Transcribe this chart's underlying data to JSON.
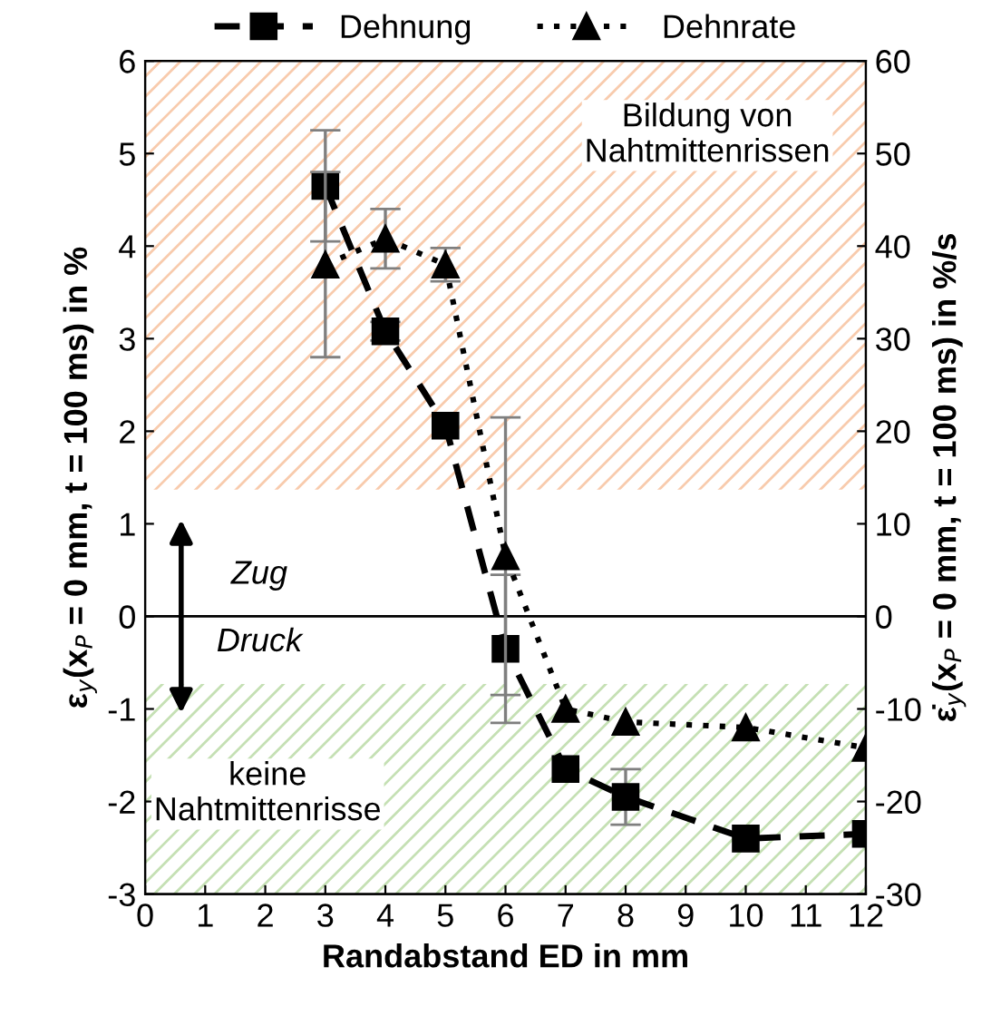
{
  "chart_data": {
    "type": "line",
    "xlabel": "Randabstand ED in mm",
    "ylabel": "ε$_{y}$(x$_{P}$ = 0 mm, t = 100 ms) in %",
    "y2label": "ε̇$_{y}$(x$_{P}$ = 0 mm, t = 100 ms) in %/s",
    "x": [
      3,
      4,
      5,
      6,
      7,
      8,
      10,
      12
    ],
    "series": [
      {
        "name": "Dehnung",
        "color": "#000000",
        "marker": "square",
        "line_style": "dashed",
        "values": [
          4.65,
          3.08,
          2.06,
          -0.35,
          -1.65,
          -1.95,
          -2.4,
          -2.35
        ],
        "errors": [
          0.6,
          0.1,
          null,
          0.8,
          null,
          0.3,
          null,
          null
        ]
      },
      {
        "name": "Dehnrate",
        "color": "#000000",
        "marker": "triangle",
        "line_style": "dotted",
        "axis": "y2",
        "values": [
          38,
          40.8,
          38,
          6.5,
          -10,
          -11.4,
          -12,
          -14.2
        ],
        "errors": [
          10,
          3.2,
          1.8,
          15,
          null,
          null,
          null,
          null
        ]
      }
    ],
    "xlim": [
      0,
      12
    ],
    "xticks": [
      0,
      1,
      2,
      3,
      4,
      5,
      6,
      7,
      8,
      9,
      10,
      11,
      12
    ],
    "ylim": [
      -3,
      6
    ],
    "yticks": [
      -3,
      -2,
      -1,
      0,
      1,
      2,
      3,
      4,
      5,
      6
    ],
    "y2lim": [
      -30,
      60
    ],
    "y2ticks": [
      -30,
      -20,
      -10,
      0,
      10,
      20,
      30,
      40,
      50,
      60
    ],
    "ref_lines": [
      {
        "axis": "y",
        "value": 0,
        "color": "#000000"
      }
    ],
    "bands": [
      {
        "axis": "y",
        "from": 1.37,
        "to": 6,
        "label": "Bildung von\nNahtmittenrissen",
        "color": "#f8cbad"
      },
      {
        "axis": "y",
        "from": -3,
        "to": -0.73,
        "label": "keine\nNahtmittenrisse",
        "color": "#c5e0b4"
      }
    ],
    "annotations": [
      "Zug",
      "Druck"
    ],
    "legend": "top",
    "grid": false
  }
}
